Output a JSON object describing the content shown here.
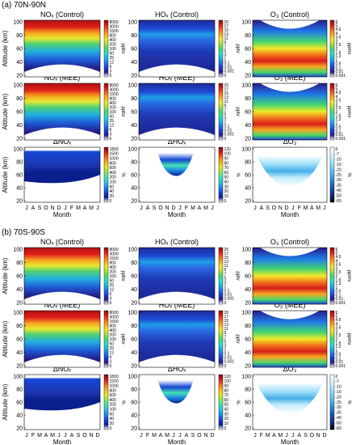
{
  "sections": [
    {
      "label": "(a) 70N-90N",
      "titles": [
        "NOₓ (Control)",
        "HOₓ (Control)",
        "O₃ (Control)",
        "NOₓ (MEE)",
        "HOₓ (MEE)",
        "O₃ (MEE)",
        "ΔNOₓ",
        "ΔHOₓ",
        "ΔO₃"
      ],
      "months": [
        "J",
        "A",
        "S",
        "O",
        "N",
        "D",
        "J",
        "F",
        "M",
        "A",
        "M",
        "J"
      ]
    },
    {
      "label": "(b) 70S-90S",
      "titles": [
        "NOₓ (Control)",
        "HOₓ (Control)",
        "O₃ (Control)",
        "NOₓ (MEE)",
        "HOₓ (MEE)",
        "O₃ (MEE)",
        "ΔNOₓ",
        "ΔHOₓ",
        "ΔO₃"
      ],
      "months": [
        "J",
        "F",
        "M",
        "A",
        "M",
        "J",
        "J",
        "A",
        "S",
        "O",
        "N",
        "D"
      ]
    }
  ],
  "axes": {
    "ylabel": "Altitude (km)",
    "xlabel": "Month",
    "yticks": [
      "20",
      "40",
      "60",
      "80",
      "100"
    ]
  },
  "colorbars": {
    "nox": {
      "unit": "ppbv",
      "ticks": [
        "8000",
        "3000",
        "1500",
        "800",
        "400",
        "200",
        "100",
        "50",
        "25",
        "12",
        "6",
        "3",
        "0"
      ]
    },
    "hox": {
      "unit": "pptv",
      "ticks": [
        "20",
        "17",
        "15",
        "13",
        "11",
        "9",
        "7",
        "5",
        "3",
        "1",
        "0.1",
        "0.01",
        "0.001",
        "0"
      ]
    },
    "o3": {
      "unit": "ppmv",
      "ticks": [
        "6",
        "5",
        "4.5",
        "4",
        "3.5",
        "3",
        "2.5",
        "2",
        "1.6",
        "1.3",
        "1",
        "0.5",
        "0.1",
        "0.01",
        "0.001"
      ]
    },
    "dnox": {
      "unit": "%",
      "ticks": [
        "1800",
        "1500",
        "1000",
        "800",
        "600",
        "400",
        "200",
        "100",
        "60",
        "40",
        "20",
        "0"
      ]
    },
    "dhox": {
      "unit": "%",
      "ticks": [
        "120",
        "100",
        "90",
        "80",
        "70",
        "60",
        "50",
        "40",
        "30",
        "20",
        "10",
        "0"
      ]
    },
    "do3": {
      "unit": "%",
      "ticks": [
        "0",
        "-7",
        "-10",
        "-15",
        "-20",
        "-25",
        "-30",
        "-35",
        "-40",
        "-50",
        "-60"
      ]
    }
  },
  "palettes": {
    "rainbow": [
      "#ffffff",
      "#2a1a8a",
      "#1e3fd6",
      "#1e7be8",
      "#22b7e0",
      "#2ee0c0",
      "#46d66c",
      "#a8e23a",
      "#f2e829",
      "#f9a91f",
      "#f06a1a",
      "#d81e1a",
      "#8a0f0f"
    ],
    "diff": [
      "#ffffff",
      "#0a1e8c",
      "#1446d6",
      "#1e8ae6",
      "#2ec2e0",
      "#46e0b4",
      "#8ce650",
      "#e6e628",
      "#f6b41e",
      "#ee6e1a",
      "#cc1e16",
      "#7a0a0a"
    ],
    "o3diff": [
      "#ffffff",
      "#e6f6fe",
      "#c2ecfc",
      "#96dcfa",
      "#6ec8f2",
      "#46aee6",
      "#2a8ad2",
      "#1a62b2",
      "#12408e",
      "#0a246a",
      "#000000"
    ]
  },
  "chart_data": [
    {
      "type": "heatmap",
      "region": "70N-90N",
      "panels": [
        {
          "title": "NOₓ (Control)",
          "quantity": "NOₓ",
          "unit": "ppbv",
          "ylim": [
            20,
            100
          ]
        },
        {
          "title": "HOₓ (Control)",
          "quantity": "HOₓ",
          "unit": "pptv",
          "ylim": [
            20,
            100
          ]
        },
        {
          "title": "O₃ (Control)",
          "quantity": "O₃",
          "unit": "ppmv",
          "ylim": [
            20,
            100
          ]
        },
        {
          "title": "NOₓ (MEE)",
          "quantity": "NOₓ",
          "unit": "ppbv",
          "ylim": [
            20,
            100
          ]
        },
        {
          "title": "HOₓ (MEE)",
          "quantity": "HOₓ",
          "unit": "pptv",
          "ylim": [
            20,
            100
          ]
        },
        {
          "title": "O₃ (MEE)",
          "quantity": "O₃",
          "unit": "ppmv",
          "ylim": [
            20,
            100
          ]
        },
        {
          "title": "ΔNOₓ",
          "quantity": "ΔNOₓ",
          "unit": "%",
          "ylim": [
            20,
            100
          ]
        },
        {
          "title": "ΔHOₓ",
          "quantity": "ΔHOₓ",
          "unit": "%",
          "ylim": [
            20,
            100
          ]
        },
        {
          "title": "ΔO₃",
          "quantity": "ΔO₃",
          "unit": "%",
          "ylim": [
            20,
            100
          ]
        }
      ]
    },
    {
      "type": "heatmap",
      "region": "70S-90S",
      "panels": [
        {
          "title": "NOₓ (Control)",
          "quantity": "NOₓ",
          "unit": "ppbv",
          "ylim": [
            20,
            100
          ]
        },
        {
          "title": "HOₓ (Control)",
          "quantity": "HOₓ",
          "unit": "pptv",
          "ylim": [
            20,
            100
          ]
        },
        {
          "title": "O₃ (Control)",
          "quantity": "O₃",
          "unit": "ppmv",
          "ylim": [
            20,
            100
          ]
        },
        {
          "title": "NOₓ (MEE)",
          "quantity": "NOₓ",
          "unit": "ppbv",
          "ylim": [
            20,
            100
          ]
        },
        {
          "title": "HOₓ (MEE)",
          "quantity": "HOₓ",
          "unit": "pptv",
          "ylim": [
            20,
            100
          ]
        },
        {
          "title": "O₃ (MEE)",
          "quantity": "O₃",
          "unit": "ppmv",
          "ylim": [
            20,
            100
          ]
        },
        {
          "title": "ΔNOₓ",
          "quantity": "ΔNOₓ",
          "unit": "%",
          "ylim": [
            20,
            100
          ]
        },
        {
          "title": "ΔHOₓ",
          "quantity": "ΔHOₓ",
          "unit": "%",
          "ylim": [
            20,
            100
          ]
        },
        {
          "title": "ΔO₃",
          "quantity": "ΔO₃",
          "unit": "%",
          "ylim": [
            20,
            100
          ]
        }
      ]
    }
  ]
}
